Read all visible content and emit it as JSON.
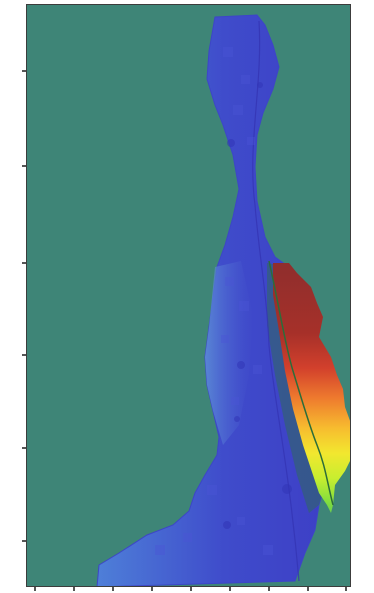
{
  "map": {
    "background_color": "#3e8577",
    "channel_color": "#3d3fc8",
    "water_color_light": "#4f7dd2",
    "plume_colors": [
      "#8f2e2d",
      "#c53b2b",
      "#e35c2e",
      "#f59b2e",
      "#f6d42d",
      "#cdef2f",
      "#8ee03a"
    ],
    "contour_color": "#2c6d3a",
    "labels": [
      "",
      "",
      "",
      "",
      "",
      "",
      "",
      "",
      "",
      "",
      ""
    ],
    "left_ticks": [
      "",
      "",
      "",
      "",
      "",
      "",
      "",
      "",
      "",
      "",
      ""
    ],
    "bottom_ticks": [
      "",
      "",
      "",
      "",
      "",
      "",
      "",
      "",
      ""
    ]
  }
}
